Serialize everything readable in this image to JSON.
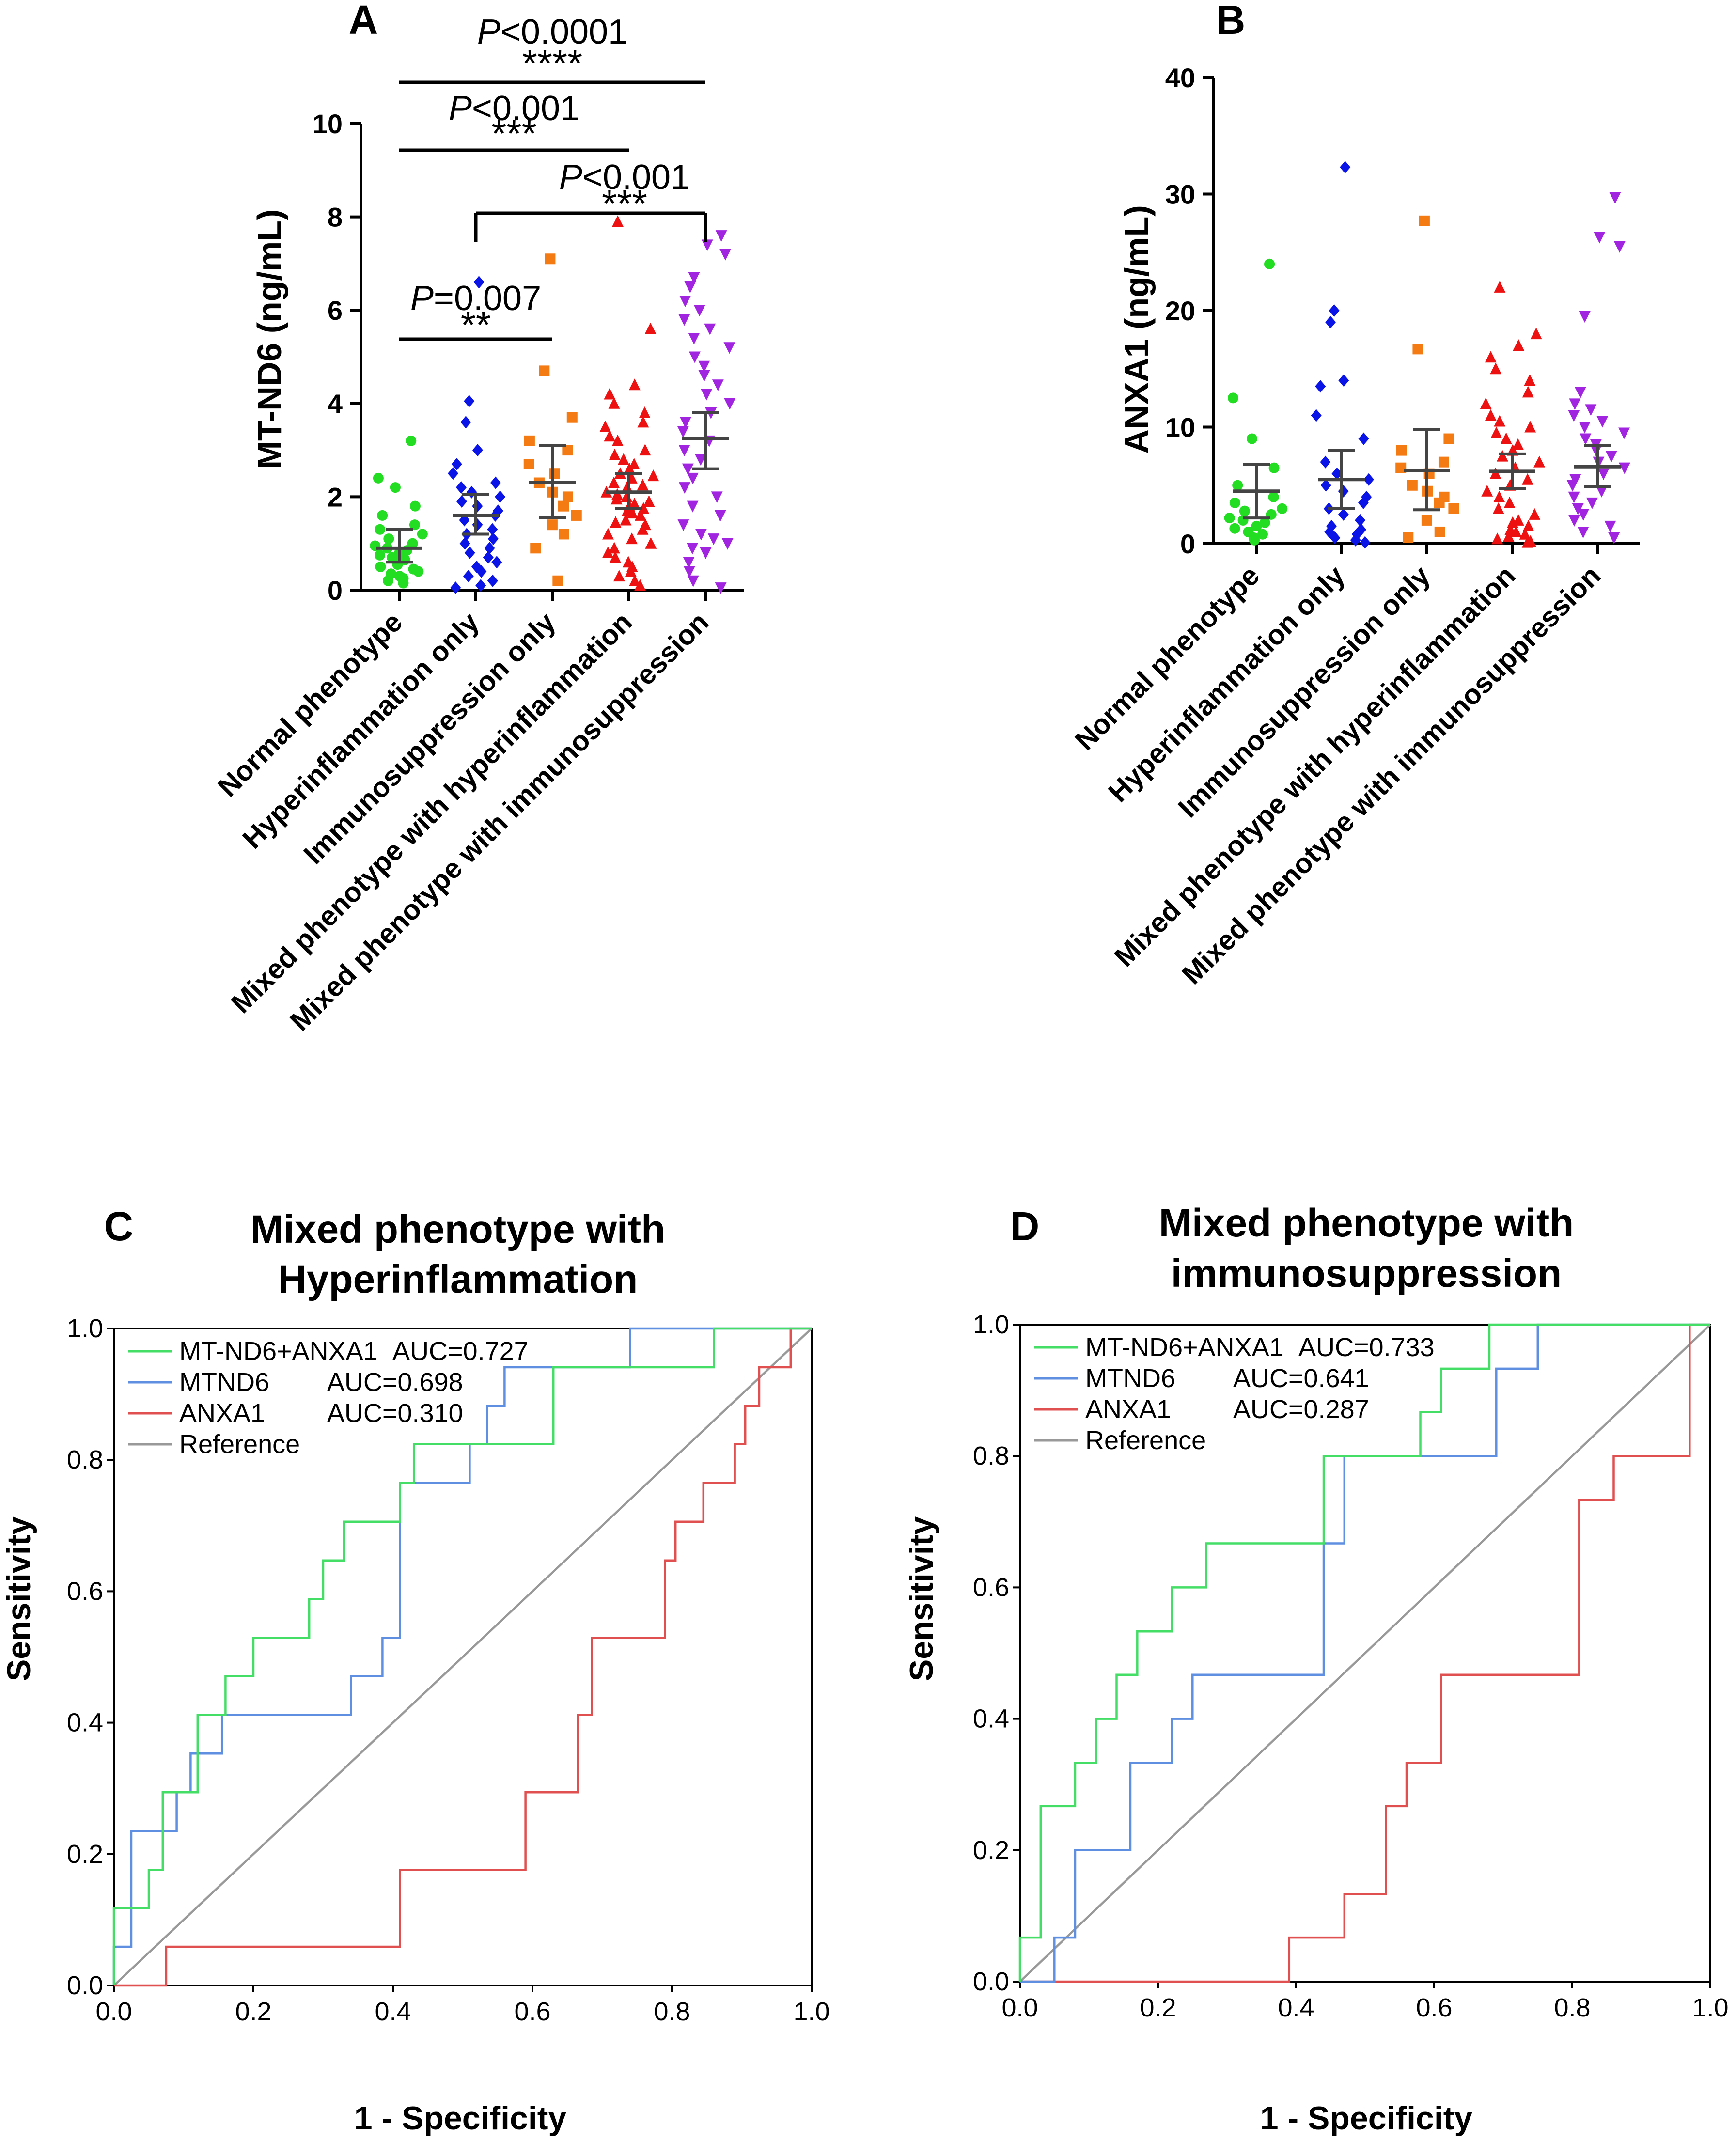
{
  "colors": {
    "normal": "#22dd22",
    "hyperinflammation": "#0a14e6",
    "immunosuppression": "#f47a14",
    "mixed_hyper": "#ee1111",
    "mixed_immuno": "#a024e0",
    "roc_combo": "#44dd66",
    "roc_mtnd6": "#5f8fe0",
    "roc_anxa1": "#e05050",
    "roc_ref": "#999999",
    "errorbar": "#444444"
  },
  "chart_data": [
    {
      "panel": "A",
      "type": "scatter",
      "ylabel": "MT-ND6 (ng/mL)",
      "ylim": [
        0,
        10
      ],
      "yticks": [
        0,
        2,
        4,
        6,
        8,
        10
      ],
      "categories": [
        "Normal phenotype",
        "Hyperinflammation only",
        "Immunosuppression only",
        "Mixed phenotype with hyperinflammation",
        "Mixed phenotype with immunosuppression"
      ],
      "markers": [
        "circle",
        "diamond",
        "square",
        "triangle-up",
        "triangle-down"
      ],
      "summary": [
        {
          "mean": 0.9,
          "ci": [
            0.6,
            1.3
          ]
        },
        {
          "mean": 1.6,
          "ci": [
            1.2,
            2.05
          ]
        },
        {
          "mean": 2.3,
          "ci": [
            1.55,
            3.1
          ]
        },
        {
          "mean": 2.1,
          "ci": [
            1.75,
            2.5
          ]
        },
        {
          "mean": 3.25,
          "ci": [
            2.6,
            3.8
          ]
        }
      ],
      "points": [
        [
          3.2,
          2.4,
          2.2,
          1.8,
          1.6,
          1.4,
          1.3,
          1.2,
          1.1,
          1.0,
          0.95,
          0.9,
          0.85,
          0.8,
          0.75,
          0.7,
          0.65,
          0.6,
          0.55,
          0.5,
          0.45,
          0.4,
          0.35,
          0.3,
          0.25,
          0.2,
          0.15
        ],
        [
          6.6,
          4.05,
          3.6,
          3.0,
          2.7,
          2.5,
          2.3,
          2.2,
          2.1,
          2.0,
          1.9,
          1.8,
          1.7,
          1.6,
          1.5,
          1.4,
          1.3,
          1.2,
          1.1,
          1.0,
          0.9,
          0.8,
          0.7,
          0.6,
          0.5,
          0.4,
          0.3,
          0.2,
          0.1,
          0.05
        ],
        [
          7.1,
          4.7,
          3.7,
          3.2,
          3.0,
          2.7,
          2.5,
          2.3,
          2.1,
          2.0,
          1.8,
          1.6,
          1.4,
          1.2,
          0.9,
          0.2
        ],
        [
          7.9,
          5.6,
          4.4,
          4.2,
          4.0,
          3.8,
          3.6,
          3.5,
          3.3,
          3.2,
          3.0,
          2.9,
          2.8,
          2.7,
          2.6,
          2.5,
          2.45,
          2.4,
          2.3,
          2.25,
          2.2,
          2.1,
          2.05,
          2.0,
          1.95,
          1.9,
          1.85,
          1.8,
          1.75,
          1.7,
          1.65,
          1.6,
          1.5,
          1.45,
          1.4,
          1.3,
          1.2,
          1.1,
          1.0,
          0.9,
          0.8,
          0.7,
          0.6,
          0.5,
          0.4,
          0.3,
          0.2,
          0.1
        ],
        [
          7.6,
          7.4,
          7.2,
          6.7,
          6.5,
          6.2,
          6.0,
          5.8,
          5.6,
          5.4,
          5.2,
          5.0,
          4.8,
          4.6,
          4.4,
          4.2,
          4.0,
          3.8,
          3.6,
          3.4,
          3.2,
          3.0,
          2.8,
          2.6,
          2.4,
          2.2,
          2.0,
          1.8,
          1.6,
          1.4,
          1.2,
          1.1,
          1.0,
          0.9,
          0.8,
          0.6,
          0.4,
          0.2,
          0.05
        ]
      ],
      "comparisons": [
        {
          "from": 0,
          "to": 4,
          "p": "<0.0001",
          "stars": "****"
        },
        {
          "from": 0,
          "to": 3,
          "p": "<0.001",
          "stars": "***"
        },
        {
          "from": 1,
          "to": 4,
          "p": "<0.001",
          "stars": "***"
        },
        {
          "from": 0,
          "to": 2,
          "p": "=0.007",
          "stars": "**"
        }
      ],
      "p_symbol": "P"
    },
    {
      "panel": "B",
      "type": "scatter",
      "ylabel": "ANXA1 (ng/mL)",
      "ylim": [
        0,
        40
      ],
      "yticks": [
        0,
        10,
        20,
        30,
        40
      ],
      "categories": [
        "Normal phenotype",
        "Hyperinflammation only",
        "Immunosuppression only",
        "Mixed phenotype with hyperinflammation",
        "Mixed phenotype with immunosuppression"
      ],
      "markers": [
        "circle",
        "diamond",
        "square",
        "triangle-up",
        "triangle-down"
      ],
      "summary": [
        {
          "mean": 4.5,
          "ci": [
            2.2,
            6.8
          ]
        },
        {
          "mean": 5.5,
          "ci": [
            3.0,
            8.0
          ]
        },
        {
          "mean": 6.3,
          "ci": [
            2.9,
            9.8
          ]
        },
        {
          "mean": 6.2,
          "ci": [
            4.7,
            7.7
          ]
        },
        {
          "mean": 6.6,
          "ci": [
            4.9,
            8.4
          ]
        }
      ],
      "points": [
        [
          24.0,
          12.5,
          9.0,
          6.5,
          5.0,
          4.0,
          3.5,
          3.0,
          2.8,
          2.5,
          2.2,
          2.0,
          1.8,
          1.5,
          1.3,
          1.0,
          0.8,
          0.5,
          0.3
        ],
        [
          32.3,
          20.0,
          19.0,
          14.0,
          13.5,
          11.0,
          9.0,
          7.0,
          6.0,
          5.5,
          5.0,
          4.5,
          4.0,
          3.5,
          3.0,
          2.5,
          2.0,
          1.5,
          1.2,
          1.0,
          0.8,
          0.5,
          0.3,
          0.1
        ],
        [
          27.7,
          16.7,
          9.0,
          8.0,
          7.0,
          6.5,
          6.0,
          5.0,
          4.5,
          4.0,
          3.5,
          3.0,
          2.0,
          1.0,
          0.5
        ],
        [
          22.0,
          18.0,
          17.0,
          16.0,
          15.0,
          14.0,
          13.0,
          12.0,
          11.0,
          10.5,
          10.0,
          9.5,
          9.0,
          8.5,
          8.0,
          7.5,
          7.0,
          6.5,
          6.0,
          5.5,
          5.0,
          4.5,
          4.0,
          3.5,
          3.0,
          2.5,
          2.0,
          1.8,
          1.5,
          1.2,
          1.0,
          0.8,
          0.6,
          0.4,
          0.2,
          0.1
        ],
        [
          29.7,
          26.3,
          25.5,
          19.5,
          13.0,
          12.0,
          11.5,
          11.0,
          10.5,
          10.0,
          9.5,
          9.0,
          8.5,
          8.0,
          7.5,
          7.0,
          6.5,
          6.0,
          5.5,
          5.0,
          4.5,
          4.0,
          3.5,
          3.0,
          2.5,
          2.0,
          1.5,
          1.0,
          0.5
        ]
      ]
    },
    {
      "panel": "C",
      "type": "line",
      "title_lines": [
        "Mixed phenotype with",
        "Hyperinflammation"
      ],
      "xlabel": "1 - Specificity",
      "ylabel": "Sensitivity",
      "xlim": [
        0,
        1
      ],
      "ylim": [
        0,
        1
      ],
      "ticks": [
        "0.0",
        "0.2",
        "0.4",
        "0.6",
        "0.8",
        "1.0"
      ],
      "series": [
        {
          "name": "MT-ND6+ANXA1",
          "auc": "AUC=0.727",
          "color_key": "roc_combo",
          "x": [
            0,
            0,
            0.05,
            0.05,
            0.07,
            0.07,
            0.12,
            0.12,
            0.16,
            0.16,
            0.2,
            0.2,
            0.28,
            0.28,
            0.3,
            0.3,
            0.33,
            0.33,
            0.41,
            0.41,
            0.43,
            0.43,
            0.63,
            0.63,
            0.86,
            0.86,
            1.0
          ],
          "y": [
            0,
            0.118,
            0.118,
            0.176,
            0.176,
            0.294,
            0.294,
            0.412,
            0.412,
            0.471,
            0.471,
            0.529,
            0.529,
            0.588,
            0.588,
            0.647,
            0.647,
            0.706,
            0.706,
            0.765,
            0.765,
            0.824,
            0.824,
            0.941,
            0.941,
            1.0,
            1.0
          ]
        },
        {
          "name": "MTND6",
          "auc": "AUC=0.698",
          "color_key": "roc_mtnd6",
          "x": [
            0,
            0,
            0.025,
            0.025,
            0.09,
            0.09,
            0.11,
            0.11,
            0.155,
            0.155,
            0.34,
            0.34,
            0.385,
            0.385,
            0.41,
            0.41,
            0.43,
            0.43,
            0.51,
            0.51,
            0.535,
            0.535,
            0.56,
            0.56,
            0.74,
            0.74,
            1.0
          ],
          "y": [
            0,
            0.059,
            0.059,
            0.235,
            0.235,
            0.294,
            0.294,
            0.353,
            0.353,
            0.412,
            0.412,
            0.471,
            0.471,
            0.529,
            0.529,
            0.765,
            0.765,
            0.765,
            0.765,
            0.824,
            0.824,
            0.882,
            0.882,
            0.941,
            0.941,
            1.0,
            1.0
          ]
        },
        {
          "name": "ANXA1",
          "auc": "AUC=0.310",
          "color_key": "roc_anxa1",
          "x": [
            0,
            0.075,
            0.075,
            0.41,
            0.41,
            0.59,
            0.59,
            0.665,
            0.665,
            0.685,
            0.685,
            0.79,
            0.79,
            0.805,
            0.805,
            0.845,
            0.845,
            0.89,
            0.89,
            0.905,
            0.905,
            0.925,
            0.925,
            0.97,
            0.97,
            1.0
          ],
          "y": [
            0,
            0,
            0.059,
            0.059,
            0.176,
            0.176,
            0.294,
            0.294,
            0.412,
            0.412,
            0.529,
            0.529,
            0.647,
            0.647,
            0.706,
            0.706,
            0.765,
            0.765,
            0.824,
            0.824,
            0.882,
            0.882,
            0.941,
            0.941,
            1.0,
            1.0
          ]
        },
        {
          "name": "Reference",
          "auc": "",
          "color_key": "roc_ref",
          "x": [
            0,
            1
          ],
          "y": [
            0,
            1
          ]
        }
      ]
    },
    {
      "panel": "D",
      "type": "line",
      "title_lines": [
        "Mixed phenotype with",
        "immunosuppression"
      ],
      "xlabel": "1 - Specificity",
      "ylabel": "Sensitivity",
      "xlim": [
        0,
        1
      ],
      "ylim": [
        0,
        1
      ],
      "ticks": [
        "0.0",
        "0.2",
        "0.4",
        "0.6",
        "0.8",
        "1.0"
      ],
      "series": [
        {
          "name": "MT-ND6+ANXA1",
          "auc": "AUC=0.733",
          "color_key": "roc_combo",
          "x": [
            0,
            0,
            0.03,
            0.03,
            0.08,
            0.08,
            0.11,
            0.11,
            0.14,
            0.14,
            0.17,
            0.17,
            0.22,
            0.22,
            0.27,
            0.27,
            0.44,
            0.44,
            0.58,
            0.58,
            0.61,
            0.61,
            0.68,
            0.68,
            1.0
          ],
          "y": [
            0,
            0.067,
            0.067,
            0.267,
            0.267,
            0.333,
            0.333,
            0.4,
            0.4,
            0.467,
            0.467,
            0.533,
            0.533,
            0.6,
            0.6,
            0.667,
            0.667,
            0.8,
            0.8,
            0.867,
            0.867,
            0.933,
            0.933,
            1.0,
            1.0
          ]
        },
        {
          "name": "MTND6",
          "auc": "AUC=0.641",
          "color_key": "roc_mtnd6",
          "x": [
            0,
            0.05,
            0.05,
            0.08,
            0.08,
            0.16,
            0.16,
            0.22,
            0.22,
            0.25,
            0.25,
            0.28,
            0.28,
            0.44,
            0.44,
            0.47,
            0.47,
            0.64,
            0.64,
            0.69,
            0.69,
            0.75,
            0.75,
            1.0
          ],
          "y": [
            0,
            0,
            0.067,
            0.067,
            0.2,
            0.2,
            0.333,
            0.333,
            0.4,
            0.4,
            0.467,
            0.467,
            0.467,
            0.467,
            0.667,
            0.667,
            0.8,
            0.8,
            0.8,
            0.8,
            0.933,
            0.933,
            1.0,
            1.0
          ]
        },
        {
          "name": "ANXA1",
          "auc": "AUC=0.287",
          "color_key": "roc_anxa1",
          "x": [
            0,
            0.39,
            0.39,
            0.47,
            0.47,
            0.53,
            0.53,
            0.56,
            0.56,
            0.61,
            0.61,
            0.75,
            0.75,
            0.81,
            0.81,
            0.86,
            0.86,
            0.97,
            0.97,
            1.0
          ],
          "y": [
            0,
            0,
            0.067,
            0.067,
            0.133,
            0.133,
            0.267,
            0.267,
            0.333,
            0.333,
            0.467,
            0.467,
            0.467,
            0.467,
            0.733,
            0.733,
            0.8,
            0.8,
            1.0,
            1.0
          ]
        },
        {
          "name": "Reference",
          "auc": "",
          "color_key": "roc_ref",
          "x": [
            0,
            1
          ],
          "y": [
            0,
            1
          ]
        }
      ]
    }
  ]
}
